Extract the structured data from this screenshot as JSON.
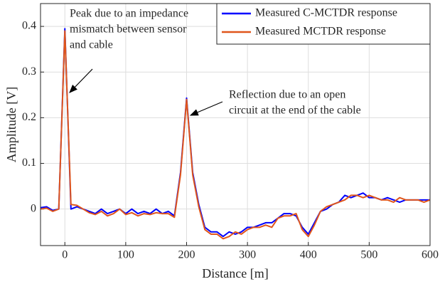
{
  "chart_data": {
    "type": "line",
    "xlabel": "Distance [m]",
    "ylabel": "Amplitude [V]",
    "x": [
      -40,
      -30,
      -20,
      -10,
      0,
      10,
      20,
      30,
      40,
      50,
      60,
      70,
      80,
      90,
      100,
      110,
      120,
      130,
      140,
      150,
      160,
      170,
      180,
      190,
      200,
      210,
      220,
      230,
      240,
      250,
      260,
      270,
      280,
      290,
      300,
      310,
      320,
      330,
      340,
      350,
      360,
      370,
      380,
      390,
      400,
      410,
      420,
      430,
      440,
      450,
      460,
      470,
      480,
      490,
      500,
      510,
      520,
      530,
      540,
      550,
      560,
      570,
      580,
      590,
      600
    ],
    "series": [
      {
        "name": "Measured C-MCTDR response",
        "color": "#0000ff",
        "values": [
          0.003,
          0.005,
          -0.003,
          0.0,
          0.395,
          0.0,
          0.005,
          0.0,
          -0.005,
          -0.01,
          0.0,
          -0.01,
          -0.005,
          0.0,
          -0.01,
          0.0,
          -0.01,
          -0.005,
          -0.01,
          0.0,
          -0.01,
          -0.005,
          -0.015,
          0.08,
          0.243,
          0.08,
          0.01,
          -0.04,
          -0.05,
          -0.05,
          -0.06,
          -0.05,
          -0.055,
          -0.05,
          -0.04,
          -0.04,
          -0.035,
          -0.03,
          -0.03,
          -0.02,
          -0.01,
          -0.01,
          -0.015,
          -0.04,
          -0.055,
          -0.03,
          -0.005,
          0.0,
          0.01,
          0.015,
          0.03,
          0.025,
          0.03,
          0.035,
          0.025,
          0.025,
          0.02,
          0.025,
          0.02,
          0.015,
          0.02,
          0.02,
          0.02,
          0.02,
          0.02
        ]
      },
      {
        "name": "Measured MCTDR response",
        "color": "#e0561b",
        "values": [
          0.0,
          0.002,
          -0.005,
          0.0,
          0.39,
          0.01,
          0.008,
          0.0,
          -0.008,
          -0.012,
          -0.005,
          -0.015,
          -0.01,
          0.0,
          -0.012,
          -0.008,
          -0.015,
          -0.01,
          -0.012,
          -0.008,
          -0.01,
          -0.01,
          -0.018,
          0.075,
          0.24,
          0.075,
          0.005,
          -0.045,
          -0.055,
          -0.055,
          -0.065,
          -0.06,
          -0.05,
          -0.055,
          -0.045,
          -0.04,
          -0.04,
          -0.035,
          -0.04,
          -0.02,
          -0.015,
          -0.015,
          -0.01,
          -0.045,
          -0.06,
          -0.035,
          -0.005,
          0.005,
          0.01,
          0.015,
          0.02,
          0.03,
          0.03,
          0.025,
          0.03,
          0.025,
          0.02,
          0.02,
          0.015,
          0.025,
          0.02,
          0.02,
          0.02,
          0.015,
          0.02
        ]
      }
    ],
    "xlim": [
      -40,
      600
    ],
    "xticks": [
      0,
      100,
      200,
      300,
      400,
      500,
      600
    ],
    "ylim": [
      -0.08,
      0.45
    ],
    "yticks": [
      0,
      0.1,
      0.2,
      0.3,
      0.4
    ],
    "grid": true,
    "legend": "upper right",
    "annotations": [
      {
        "text": [
          "Peak due to an impedance",
          "mismatch between sensor",
          "and cable"
        ]
      },
      {
        "text": [
          "Reflection due to an open",
          "circuit at the end of the cable"
        ]
      }
    ]
  }
}
